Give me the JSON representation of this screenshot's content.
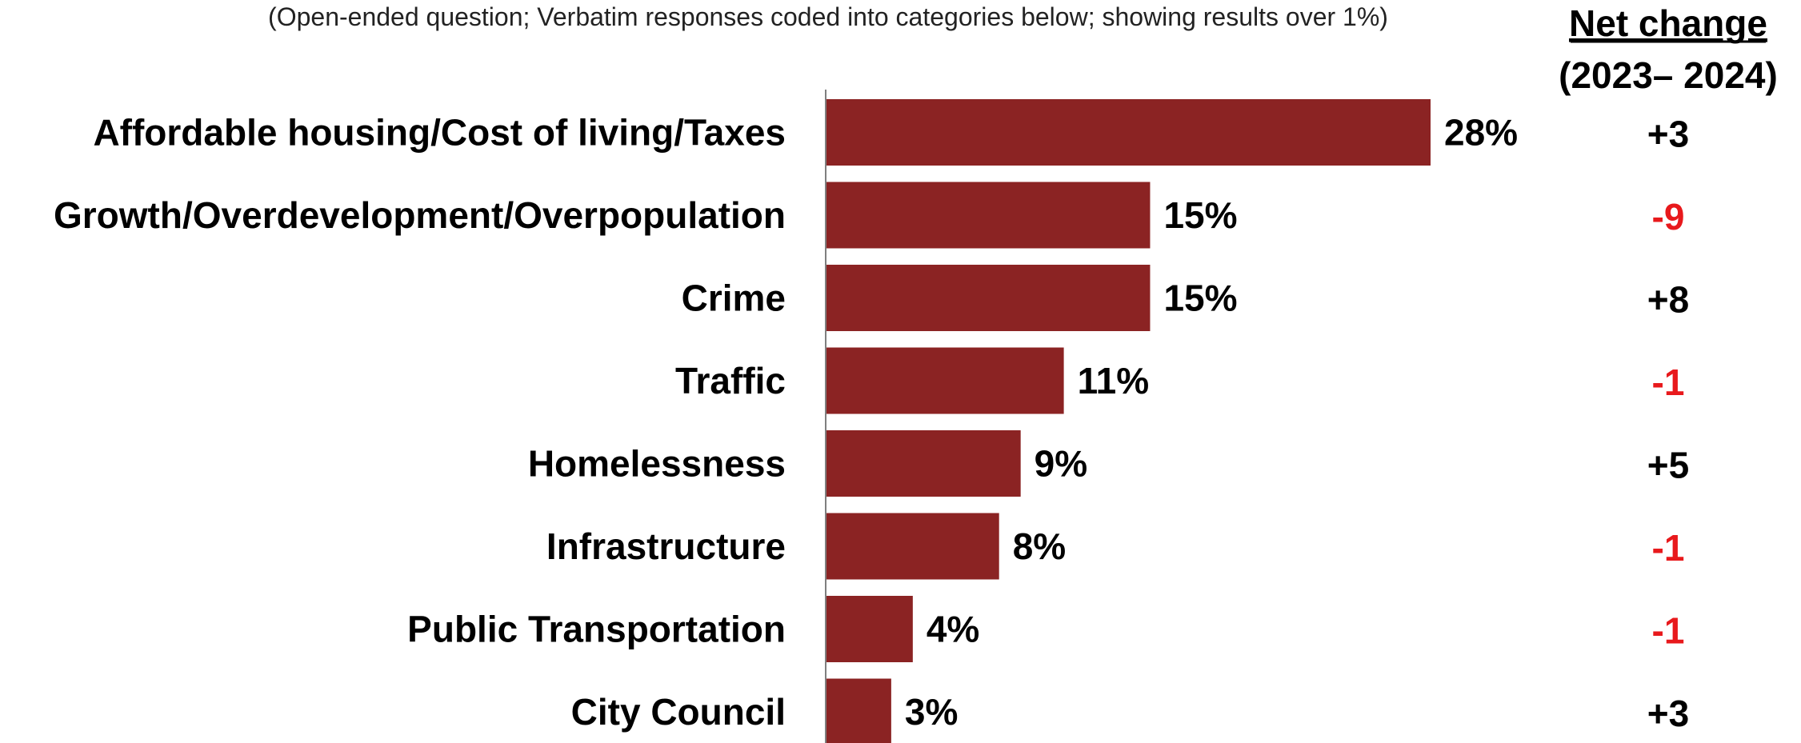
{
  "chart_data": {
    "type": "bar",
    "orientation": "horizontal",
    "subtitle": "(Open-ended question; Verbatim responses coded into categories below; showing results over 1%)",
    "categories": [
      "Affordable housing/Cost of living/Taxes",
      "Growth/Overdevelopment/Overpopulation",
      "Crime",
      "Traffic",
      "Homelessness",
      "Infrastructure",
      "Public Transportation",
      "City Council"
    ],
    "values": [
      28,
      15,
      15,
      11,
      9,
      8,
      4,
      3
    ],
    "value_labels": [
      "28%",
      "15%",
      "15%",
      "11%",
      "9%",
      "8%",
      "4%",
      "3%"
    ],
    "bar_color": "#8B2323",
    "xlim": [
      0,
      28
    ],
    "grid": false,
    "net_change": {
      "header_line1": "Net change",
      "header_line2": "(2023– 2024)",
      "values": [
        "+3",
        "-9",
        "+8",
        "-1",
        "+5",
        "-1",
        "-1",
        "+3"
      ],
      "positive_color": "#000000",
      "negative_color": "#E8191C"
    }
  }
}
